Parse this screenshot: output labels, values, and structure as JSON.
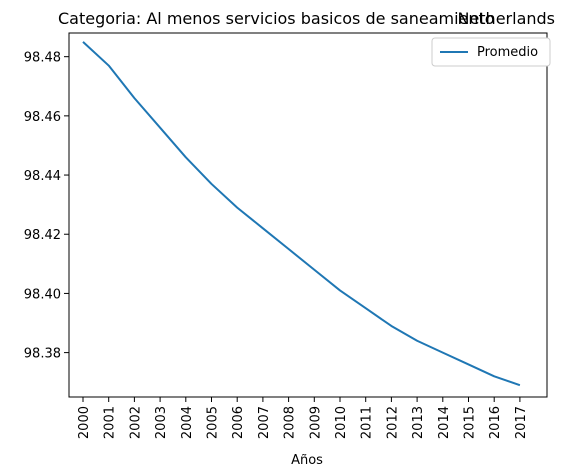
{
  "chart_data": {
    "type": "line",
    "title": "Categoria: Al menos servicios basicos de saneamiento",
    "title_right": "Netherlands",
    "xlabel": "Años",
    "ylabel": "",
    "x": [
      "2000",
      "2001",
      "2002",
      "2003",
      "2004",
      "2005",
      "2006",
      "2007",
      "2008",
      "2009",
      "2010",
      "2011",
      "2012",
      "2013",
      "2014",
      "2015",
      "2016",
      "2017"
    ],
    "ylim": [
      98.365,
      98.488
    ],
    "yticks": [
      "98.38",
      "98.40",
      "98.42",
      "98.44",
      "98.46",
      "98.48"
    ],
    "grid": false,
    "legend_position": "top-right",
    "series": [
      {
        "name": "Promedio",
        "color": "#1f77b4",
        "values": [
          98.485,
          98.477,
          98.466,
          98.456,
          98.446,
          98.437,
          98.429,
          98.422,
          98.415,
          98.408,
          98.401,
          98.395,
          98.389,
          98.384,
          98.38,
          98.376,
          98.372,
          98.369
        ]
      }
    ]
  }
}
